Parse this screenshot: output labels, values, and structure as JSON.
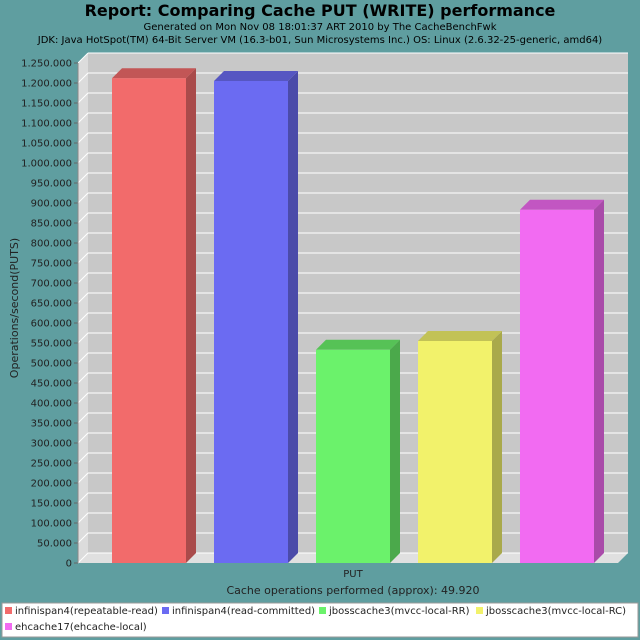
{
  "chart_data": {
    "type": "bar",
    "title": "Report: Comparing Cache PUT (WRITE) performance",
    "subtitles": [
      "Generated on Mon Nov 08 18:01:37 ART 2010 by The CacheBenchFwk",
      "JDK: Java HotSpot(TM) 64-Bit Server VM (16.3-b01, Sun Microsystems Inc.) OS: Linux (2.6.32-25-generic, amd64)"
    ],
    "categories": [
      "PUT"
    ],
    "xlabel": "Cache operations performed (approx): 49.920",
    "ylabel": "Operations/second(PUTS)",
    "ylim": [
      0,
      1250000
    ],
    "yticks": [
      0,
      50000,
      100000,
      150000,
      200000,
      250000,
      300000,
      350000,
      400000,
      450000,
      500000,
      550000,
      600000,
      650000,
      700000,
      750000,
      800000,
      850000,
      900000,
      950000,
      1000000,
      1050000,
      1100000,
      1150000,
      1200000,
      1250000
    ],
    "ytick_labels": [
      "0",
      "50.000",
      "100.000",
      "150.000",
      "200.000",
      "250.000",
      "300.000",
      "350.000",
      "400.000",
      "450.000",
      "500.000",
      "550.000",
      "600.000",
      "650.000",
      "700.000",
      "750.000",
      "800.000",
      "850.000",
      "900.000",
      "950.000",
      "1.000.000",
      "1.050.000",
      "1.100.000",
      "1.150.000",
      "1.200.000",
      "1.250.000"
    ],
    "grid": true,
    "legend_position": "bottom",
    "series": [
      {
        "name": "infinispan4(repeatable-read)",
        "values": [
          1212000
        ],
        "color": "#f26b6b"
      },
      {
        "name": "infinispan4(read-committed)",
        "values": [
          1205000
        ],
        "color": "#6b6bf2"
      },
      {
        "name": "jbosscache3(mvcc-local-RR)",
        "values": [
          533000
        ],
        "color": "#6bf26b"
      },
      {
        "name": "jbosscache3(mvcc-local-RC)",
        "values": [
          555000
        ],
        "color": "#f2f26b"
      },
      {
        "name": "ehcache17(ehcache-local)",
        "values": [
          883000
        ],
        "color": "#f26bf2"
      }
    ]
  }
}
